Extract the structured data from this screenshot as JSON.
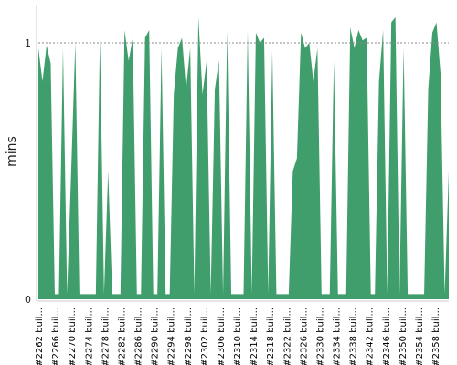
{
  "chart_data": {
    "type": "area",
    "ylabel": "mins",
    "ylim": [
      0,
      1.15
    ],
    "y_ticks": [
      "0",
      "1"
    ],
    "reference_line": 1,
    "grid": false,
    "legend": "none",
    "colors": {
      "area": "#3f9e6c",
      "reference": "#888888",
      "axis": "#cccccc"
    },
    "x_tick_labels": [
      "#2262 buil...",
      "#2266 buil...",
      "#2270 buil...",
      "#2274 buil...",
      "#2278 buil...",
      "#2282 buil...",
      "#2286 buil...",
      "#2290 buil...",
      "#2294 buil...",
      "#2298 buil...",
      "#2302 buil...",
      "#2306 buil...",
      "#2310 buil...",
      "#2314 buil...",
      "#2318 buil...",
      "#2322 buil...",
      "#2326 buil...",
      "#2330 buil...",
      "#2334 buil...",
      "#2338 buil...",
      "#2342 buil...",
      "#2346 buil...",
      "#2350 buil...",
      "#2354 buil...",
      "#2358 buil..."
    ],
    "series": [
      {
        "values": [
          0.98,
          0.85,
          0.99,
          0.92,
          0.02,
          0.02,
          0.98,
          0.02,
          0.5,
          1.0,
          0.02,
          0.02,
          0.02,
          0.02,
          0.02,
          1.02,
          0.02,
          0.5,
          0.02,
          0.02,
          0.02,
          1.05,
          0.93,
          1.02,
          0.02,
          0.02,
          1.02,
          1.05,
          0.02,
          0.02,
          0.98,
          0.02,
          0.02,
          0.8,
          0.98,
          1.02,
          0.82,
          0.98,
          0.02,
          1.1,
          0.8,
          0.93,
          0.02,
          0.82,
          0.93,
          0.02,
          1.05,
          0.02,
          0.02,
          0.02,
          0.02,
          1.05,
          0.02,
          1.04,
          1.0,
          1.02,
          0.02,
          0.97,
          0.02,
          0.02,
          0.02,
          0.02,
          0.5,
          0.55,
          1.04,
          0.98,
          1.0,
          0.85,
          0.98,
          0.02,
          0.02,
          0.02,
          0.93,
          0.02,
          0.02,
          0.02,
          1.06,
          0.98,
          1.05,
          1.01,
          1.02,
          0.02,
          0.02,
          0.85,
          1.05,
          0.02,
          1.08,
          1.1,
          0.02,
          0.98,
          0.02,
          0.02,
          0.02,
          0.02,
          0.02,
          0.82,
          1.04,
          1.08,
          0.88,
          0.02,
          0.5
        ]
      }
    ]
  }
}
